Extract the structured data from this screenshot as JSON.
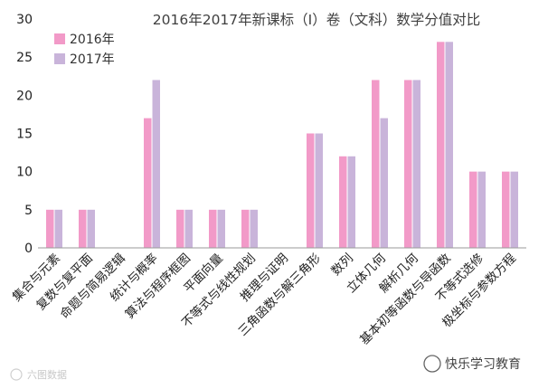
{
  "chart_data": {
    "type": "bar",
    "title": "2016年2017年新课标（Ⅰ）卷（文科）数学分值对比",
    "xlabel": "",
    "ylabel": "",
    "ylim": [
      0,
      30
    ],
    "yticks": [
      0,
      5,
      10,
      15,
      20,
      25,
      30
    ],
    "grid": false,
    "legend_position": "top-left",
    "categories": [
      "集合与元素",
      "复数与复平面",
      "命题与简易逻辑",
      "统计与概率",
      "算法与程序框图",
      "平面向量",
      "不等式与线性规划",
      "推理与证明",
      "三角函数与解三角形",
      "数列",
      "立体几何",
      "解析几何",
      "基本初等函数与导函数",
      "不等式选修",
      "极坐标与参数方程"
    ],
    "series": [
      {
        "name": "2016年",
        "color": "#f29ac8",
        "values": [
          5,
          5,
          0,
          17,
          5,
          5,
          5,
          0,
          15,
          12,
          22,
          22,
          27,
          10,
          10
        ]
      },
      {
        "name": "2017年",
        "color": "#c9b4da",
        "values": [
          5,
          5,
          0,
          22,
          5,
          5,
          5,
          0,
          15,
          12,
          17,
          22,
          27,
          10,
          10
        ]
      }
    ]
  },
  "watermarks": {
    "left": "六图数据",
    "right": "快乐学习教育"
  }
}
